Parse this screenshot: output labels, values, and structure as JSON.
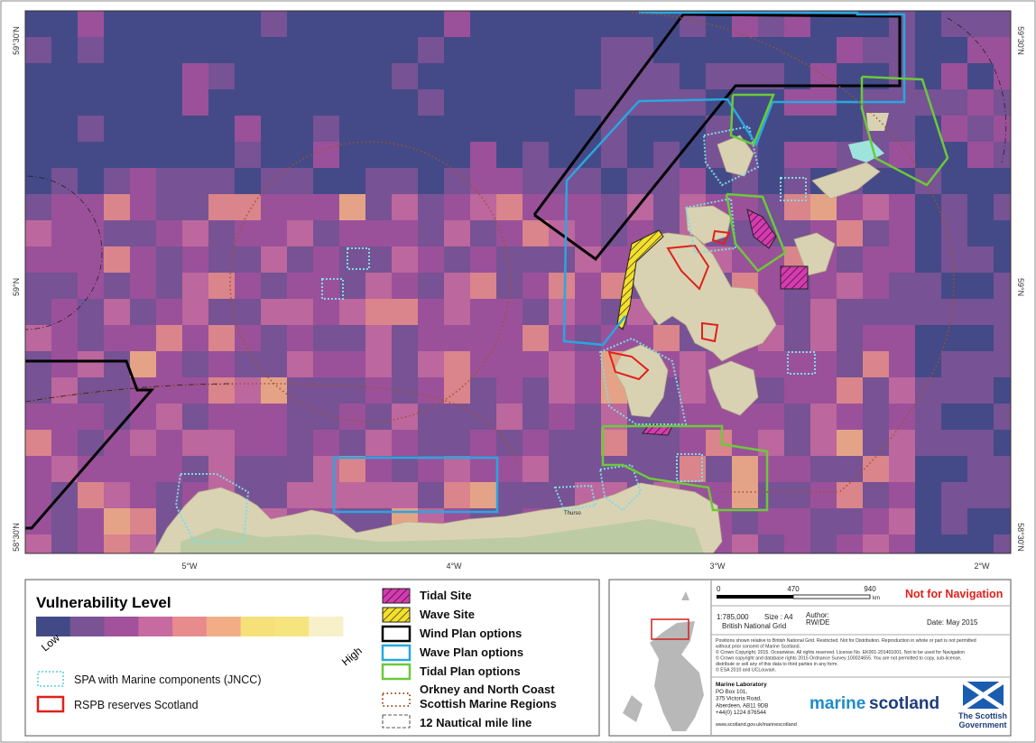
{
  "map": {
    "lat_labels": [
      "59°30'N",
      "59°N",
      "58°30'N"
    ],
    "lon_labels": [
      "5°W",
      "4°W",
      "3°W",
      "2°W"
    ],
    "place_label": "Thurso"
  },
  "legend": {
    "title": "Vulnerability Level",
    "colors": [
      "#414a86",
      "#7a5395",
      "#a1529b",
      "#c76a9f",
      "#e88b8c",
      "#f3ad86",
      "#f6e07a",
      "#f6e57f",
      "#f8f0c8"
    ],
    "low": "Low",
    "high": "High",
    "spa": "SPA with Marine components (JNCC)",
    "rspb": "RSPB reserves Scotland",
    "tidal_site": "Tidal Site",
    "wave_site": "Wave Site",
    "wind_plan": "Wind Plan options",
    "wave_plan": "Wave Plan options",
    "tidal_plan": "Tidal Plan options",
    "regions_line1": "Orkney and North Coast",
    "regions_line2": "Scottish Marine Regions",
    "nautical": "12 Nautical mile line"
  },
  "info": {
    "scale_ticks": [
      "0",
      "470",
      "940"
    ],
    "scale_unit": "km",
    "warning": "Not for Navigation",
    "scale": "1:785,000",
    "size": "Size : A4",
    "author_label": "Author:",
    "author": "RW/DE",
    "grid": "British National Grid",
    "date": "Date: May 2015",
    "disclaimer": [
      "Positions shown relative to British National Grid. Restricted. Not for Distribution. Reproduction in whole or part is not permitted",
      "without prior consent of Marine Scotland.",
      "© Crown Copyright, 2015. Oceanwise. All rights reserved. License No. EK001-201401001. Not to be used for Navigation",
      "© Crown copyright and database rights 2015 Ordnance Survey 100024655. You are not permitted to copy, sub-license,",
      "distribute or sell any of this data to third parties in any form.",
      "© ESA 2010 and UCLouvain."
    ],
    "address": [
      "Marine Laboratory",
      "PO Box 101,",
      "375 Victoria Road,",
      "Aberdeen, AB11 9DB",
      "+44(0) 1224 876544"
    ],
    "website": "www.scotland.gov.uk/marinescotland",
    "logo_marine": "marine",
    "logo_scotland": "scotland",
    "gov_line1": "The Scottish",
    "gov_line2": "Government"
  }
}
